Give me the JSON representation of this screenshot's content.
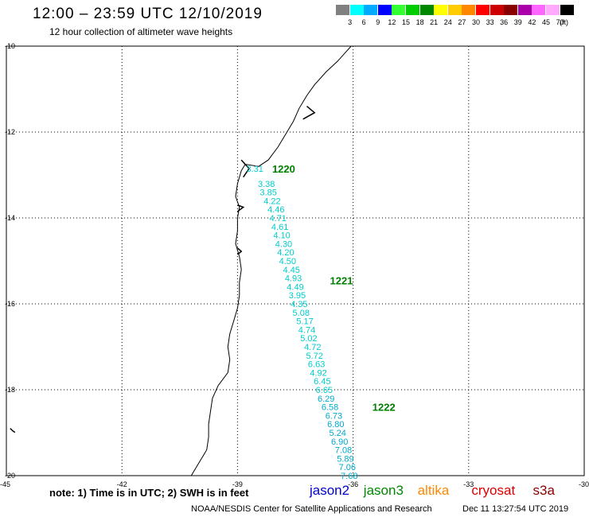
{
  "header": {
    "title": "12:00 – 23:59 UTC 12/10/2019",
    "subtitle": "12 hour collection of altimeter wave heights"
  },
  "colorbar": {
    "unit": "(ft)",
    "colors": [
      "#808080",
      "#00ffff",
      "#00aaff",
      "#0000ff",
      "#33ff33",
      "#00cc00",
      "#008800",
      "#ffff00",
      "#ffcc00",
      "#ff8800",
      "#ff0000",
      "#cc0000",
      "#880000",
      "#aa00aa",
      "#ff66ff",
      "#ffaaff",
      "#000000"
    ],
    "labels": [
      "3",
      "6",
      "9",
      "12",
      "15",
      "18",
      "21",
      "24",
      "27",
      "30",
      "33",
      "36",
      "39",
      "42",
      "45",
      "70"
    ]
  },
  "map": {
    "lon_ticks": [
      "-45",
      "-42",
      "-39",
      "-36",
      "-33",
      "-30"
    ],
    "lat_ticks": [
      "-10",
      "-12",
      "-14",
      "-16",
      "-18",
      "-20"
    ],
    "lon_range": [
      -45,
      -30
    ],
    "lat_range": [
      -20,
      -10
    ],
    "track_color": "#00cccc",
    "track_color_deep": "#00aacc",
    "time_label_color": "#008000",
    "time_labels": [
      {
        "text": "1220",
        "lon": -38.1,
        "lat": -12.85
      },
      {
        "text": "1221",
        "lon": -36.6,
        "lat": -15.45
      },
      {
        "text": "1222",
        "lon": -35.5,
        "lat": -18.4
      }
    ],
    "swh_points": [
      {
        "lon": -38.55,
        "lat": -12.85,
        "value": "3.31"
      },
      {
        "lon": -38.25,
        "lat": -13.2,
        "value": "3.38"
      },
      {
        "lon": -38.2,
        "lat": -13.4,
        "value": "3.85"
      },
      {
        "lon": -38.1,
        "lat": -13.6,
        "value": "4.22"
      },
      {
        "lon": -38.0,
        "lat": -13.8,
        "value": "4.46"
      },
      {
        "lon": -37.95,
        "lat": -14.0,
        "value": "4.71"
      },
      {
        "lon": -37.9,
        "lat": -14.2,
        "value": "4.61"
      },
      {
        "lon": -37.85,
        "lat": -14.4,
        "value": "4.10"
      },
      {
        "lon": -37.8,
        "lat": -14.6,
        "value": "4.30"
      },
      {
        "lon": -37.75,
        "lat": -14.8,
        "value": "4.20"
      },
      {
        "lon": -37.7,
        "lat": -15.0,
        "value": "4.50"
      },
      {
        "lon": -37.6,
        "lat": -15.2,
        "value": "4.45"
      },
      {
        "lon": -37.55,
        "lat": -15.4,
        "value": "4.93"
      },
      {
        "lon": -37.5,
        "lat": -15.6,
        "value": "4.49"
      },
      {
        "lon": -37.45,
        "lat": -15.8,
        "value": "3.95"
      },
      {
        "lon": -37.4,
        "lat": -16.0,
        "value": "4.35"
      },
      {
        "lon": -37.35,
        "lat": -16.2,
        "value": "5.08"
      },
      {
        "lon": -37.25,
        "lat": -16.4,
        "value": "5.17"
      },
      {
        "lon": -37.2,
        "lat": -16.6,
        "value": "4.74"
      },
      {
        "lon": -37.15,
        "lat": -16.8,
        "value": "5.02"
      },
      {
        "lon": -37.05,
        "lat": -17.0,
        "value": "4.72"
      },
      {
        "lon": -37.0,
        "lat": -17.2,
        "value": "5.72"
      },
      {
        "lon": -36.95,
        "lat": -17.4,
        "value": "6.63"
      },
      {
        "lon": -36.9,
        "lat": -17.6,
        "value": "4.92"
      },
      {
        "lon": -36.8,
        "lat": -17.8,
        "value": "6.45"
      },
      {
        "lon": -36.75,
        "lat": -18.0,
        "value": "6.65"
      },
      {
        "lon": -36.7,
        "lat": -18.2,
        "value": "6.29"
      },
      {
        "lon": -36.6,
        "lat": -18.4,
        "value": "6.58"
      },
      {
        "lon": -36.5,
        "lat": -18.6,
        "value": "6.73"
      },
      {
        "lon": -36.45,
        "lat": -18.8,
        "value": "6.80"
      },
      {
        "lon": -36.4,
        "lat": -19.0,
        "value": "5.24"
      },
      {
        "lon": -36.35,
        "lat": -19.2,
        "value": "6.90"
      },
      {
        "lon": -36.25,
        "lat": -19.4,
        "value": "7.08"
      },
      {
        "lon": -36.2,
        "lat": -19.6,
        "value": "5.89"
      },
      {
        "lon": -36.15,
        "lat": -19.8,
        "value": "7.06"
      },
      {
        "lon": -36.1,
        "lat": -20.0,
        "value": "7.68"
      }
    ],
    "coastline": [
      [
        -36.05,
        -10.0
      ],
      [
        -36.2,
        -10.15
      ],
      [
        -36.4,
        -10.35
      ],
      [
        -36.7,
        -10.6
      ],
      [
        -37.0,
        -10.9
      ],
      [
        -37.2,
        -11.15
      ],
      [
        -37.4,
        -11.45
      ],
      [
        -37.55,
        -11.75
      ],
      [
        -37.75,
        -12.05
      ],
      [
        -37.95,
        -12.35
      ],
      [
        -38.2,
        -12.65
      ],
      [
        -38.45,
        -12.8
      ],
      [
        -38.8,
        -12.75
      ],
      [
        -38.9,
        -12.9
      ],
      [
        -39.0,
        -13.2
      ],
      [
        -39.05,
        -13.5
      ],
      [
        -38.95,
        -13.75
      ],
      [
        -39.0,
        -14.0
      ],
      [
        -39.0,
        -14.3
      ],
      [
        -39.05,
        -14.6
      ],
      [
        -38.95,
        -14.9
      ],
      [
        -38.9,
        -15.2
      ],
      [
        -38.95,
        -15.5
      ],
      [
        -38.95,
        -15.8
      ],
      [
        -39.0,
        -16.1
      ],
      [
        -39.1,
        -16.4
      ],
      [
        -39.2,
        -16.7
      ],
      [
        -39.25,
        -17.0
      ],
      [
        -39.2,
        -17.3
      ],
      [
        -39.25,
        -17.6
      ],
      [
        -39.5,
        -17.9
      ],
      [
        -39.65,
        -18.2
      ],
      [
        -39.7,
        -18.5
      ],
      [
        -39.75,
        -18.8
      ],
      [
        -39.75,
        -19.1
      ],
      [
        -39.8,
        -19.4
      ],
      [
        -40.0,
        -19.7
      ],
      [
        -40.2,
        -20.0
      ]
    ],
    "coast_features": [
      [
        [
          -38.9,
          -12.65
        ],
        [
          -38.7,
          -12.85
        ],
        [
          -38.85,
          -13.05
        ]
      ],
      [
        [
          -37.3,
          -11.7
        ],
        [
          -37.0,
          -11.55
        ],
        [
          -37.2,
          -11.4
        ]
      ],
      [
        [
          -39.0,
          -13.7
        ],
        [
          -38.85,
          -13.75
        ],
        [
          -39.0,
          -13.85
        ]
      ],
      [
        [
          -39.0,
          -14.7
        ],
        [
          -38.9,
          -14.78
        ],
        [
          -39.0,
          -14.85
        ]
      ]
    ],
    "left_edge_mark": {
      "lon": -44.9,
      "lat": -18.9
    }
  },
  "footer": {
    "note": "note:  1) Time is in UTC;  2) SWH is in feet",
    "credit": "NOAA/NESDIS Center for Satellite Applications and Research",
    "timestamp": "Dec 11 13:27:54 UTC 2019",
    "legend": [
      {
        "name": "jason2",
        "color": "#0000cc"
      },
      {
        "name": "jason3",
        "color": "#008800"
      },
      {
        "name": "altika",
        "color": "#ff8800"
      },
      {
        "name": "cryosat",
        "color": "#dd0000"
      },
      {
        "name": "s3a",
        "color": "#880000"
      }
    ]
  }
}
